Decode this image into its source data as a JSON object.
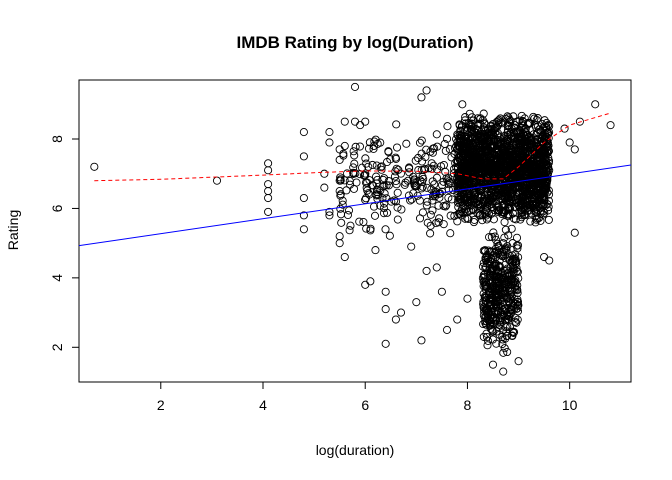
{
  "chart_data": {
    "type": "scatter",
    "title": "IMDB Rating by log(Duration)",
    "xlabel": "log(duration)",
    "ylabel": "Rating",
    "xlim": [
      0.4,
      11.2
    ],
    "ylim": [
      1.0,
      9.7
    ],
    "x_ticks": [
      2,
      4,
      6,
      8,
      10
    ],
    "y_ticks": [
      2,
      4,
      6,
      8
    ],
    "grid": false,
    "legend": "none",
    "colors": {
      "points": "#000000",
      "linear_fit": "#0000ff",
      "smooth_fit": "#ff0000"
    },
    "points": [
      [
        0.7,
        7.2
      ],
      [
        3.1,
        6.8
      ],
      [
        4.1,
        7.3
      ],
      [
        4.1,
        7.1
      ],
      [
        4.1,
        6.7
      ],
      [
        4.1,
        6.5
      ],
      [
        4.1,
        6.3
      ],
      [
        4.1,
        5.9
      ],
      [
        4.8,
        8.2
      ],
      [
        4.8,
        7.5
      ],
      [
        4.8,
        6.3
      ],
      [
        4.8,
        5.8
      ],
      [
        4.8,
        5.4
      ],
      [
        5.2,
        7.0
      ],
      [
        5.2,
        6.6
      ],
      [
        5.3,
        8.2
      ],
      [
        5.3,
        7.9
      ],
      [
        5.3,
        5.9
      ],
      [
        5.3,
        5.8
      ],
      [
        5.5,
        7.7
      ],
      [
        5.5,
        7.4
      ],
      [
        5.5,
        6.8
      ],
      [
        5.5,
        6.5
      ],
      [
        5.5,
        5.2
      ],
      [
        5.5,
        5.0
      ],
      [
        5.6,
        8.5
      ],
      [
        5.6,
        7.8
      ],
      [
        5.6,
        4.6
      ],
      [
        5.8,
        9.5
      ],
      [
        5.8,
        8.5
      ],
      [
        5.9,
        8.4
      ],
      [
        6.0,
        8.5
      ],
      [
        6.0,
        3.8
      ],
      [
        6.1,
        3.9
      ],
      [
        6.2,
        4.8
      ],
      [
        6.4,
        3.6
      ],
      [
        6.4,
        3.1
      ],
      [
        6.4,
        2.1
      ],
      [
        6.6,
        2.8
      ],
      [
        6.7,
        3.0
      ],
      [
        6.9,
        4.9
      ],
      [
        7.0,
        3.3
      ],
      [
        7.1,
        2.2
      ],
      [
        7.1,
        9.2
      ],
      [
        7.2,
        9.4
      ],
      [
        7.2,
        4.2
      ],
      [
        7.4,
        4.3
      ],
      [
        7.5,
        3.6
      ],
      [
        7.6,
        2.5
      ],
      [
        7.8,
        2.8
      ],
      [
        7.9,
        9.0
      ],
      [
        8.0,
        3.4
      ],
      [
        8.5,
        1.5
      ],
      [
        8.7,
        1.3
      ],
      [
        9.0,
        1.6
      ],
      [
        9.5,
        4.6
      ],
      [
        9.6,
        4.5
      ],
      [
        10.0,
        7.9
      ],
      [
        10.1,
        5.3
      ],
      [
        10.5,
        9.0
      ],
      [
        10.8,
        8.4
      ],
      [
        10.2,
        8.5
      ],
      [
        9.9,
        8.3
      ],
      [
        10.1,
        7.7
      ]
    ],
    "dense_clusters": [
      {
        "name": "",
        "x": [
          5.5,
          7.8
        ],
        "y": [
          5.0,
          8.5
        ],
        "count": 240
      },
      {
        "name": "",
        "x": [
          7.8,
          9.6
        ],
        "y": [
          5.5,
          8.8
        ],
        "count": 1800
      },
      {
        "name": "",
        "x": [
          8.3,
          9.0
        ],
        "y": [
          1.8,
          5.5
        ],
        "count": 420
      }
    ],
    "lines": [
      {
        "name": "",
        "style": "solid",
        "x": [
          0.4,
          11.2
        ],
        "y": [
          4.93,
          7.25
        ]
      },
      {
        "name": "",
        "style": "dashed",
        "x": [
          0.7,
          2.0,
          3.0,
          4.0,
          5.0,
          6.0,
          7.0,
          7.8,
          8.3,
          8.7,
          9.0,
          9.5,
          10.0,
          10.8
        ],
        "y": [
          6.8,
          6.84,
          6.9,
          6.96,
          7.03,
          7.08,
          7.07,
          7.0,
          6.85,
          6.85,
          7.2,
          7.9,
          8.4,
          8.75
        ]
      }
    ]
  }
}
